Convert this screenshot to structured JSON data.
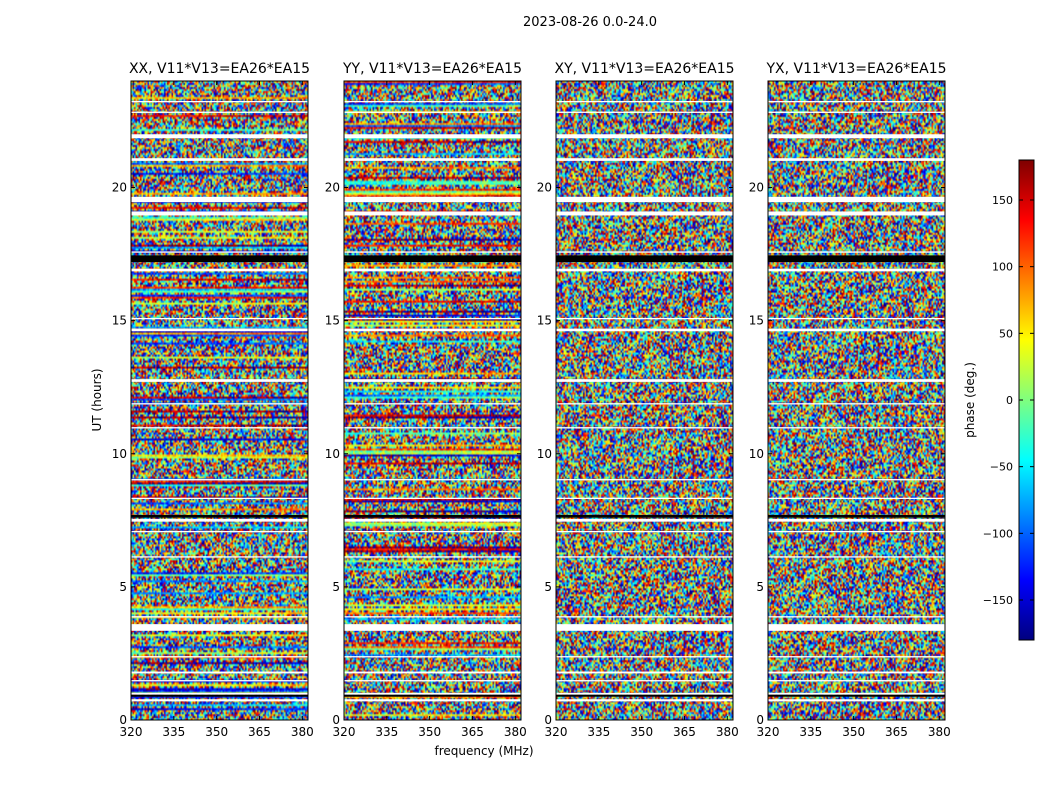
{
  "figure": {
    "title": "2023-08-26 0.0-24.0",
    "xlabel": "frequency (MHz)",
    "ylabel": "UT (hours)",
    "colorbar_label": "phase (deg.)"
  },
  "colormap": {
    "name": "jet",
    "stops": [
      "#00007f",
      "#0000ff",
      "#007fff",
      "#00ffff",
      "#7fff7f",
      "#ffff00",
      "#ff7f00",
      "#ff0000",
      "#7f0000"
    ]
  },
  "chart_data": [
    {
      "type": "heatmap",
      "title": "XX, V11*V13=EA26*EA15",
      "x": {
        "label": "frequency (MHz)",
        "range": [
          320,
          382
        ],
        "ticks": [
          320,
          335,
          350,
          365,
          380
        ]
      },
      "y": {
        "label": "UT (hours)",
        "range": [
          0,
          24
        ],
        "ticks": [
          0,
          5,
          10,
          15,
          20
        ]
      },
      "value": {
        "label": "phase (deg.)",
        "range": [
          -180,
          180
        ]
      }
    },
    {
      "type": "heatmap",
      "title": "YY, V11*V13=EA26*EA15",
      "x": {
        "label": "frequency (MHz)",
        "range": [
          320,
          382
        ],
        "ticks": [
          320,
          335,
          350,
          365,
          380
        ]
      },
      "y": {
        "label": "",
        "range": [
          0,
          24
        ],
        "ticks": [
          0,
          5,
          10,
          15,
          20
        ]
      },
      "value": {
        "label": "phase (deg.)",
        "range": [
          -180,
          180
        ]
      }
    },
    {
      "type": "heatmap",
      "title": "XY, V11*V13=EA26*EA15",
      "x": {
        "label": "frequency (MHz)",
        "range": [
          320,
          382
        ],
        "ticks": [
          320,
          335,
          350,
          365,
          380
        ]
      },
      "y": {
        "label": "",
        "range": [
          0,
          24
        ],
        "ticks": [
          0,
          5,
          10,
          15,
          20
        ]
      },
      "value": {
        "label": "phase (deg.)",
        "range": [
          -180,
          180
        ]
      }
    },
    {
      "type": "heatmap",
      "title": "YX, V11*V13=EA26*EA15",
      "x": {
        "label": "frequency (MHz)",
        "range": [
          320,
          382
        ],
        "ticks": [
          320,
          335,
          350,
          365,
          380
        ]
      },
      "y": {
        "label": "",
        "range": [
          0,
          24
        ],
        "ticks": [
          0,
          5,
          10,
          15,
          20
        ]
      },
      "value": {
        "label": "phase (deg.)",
        "range": [
          -180,
          180
        ]
      }
    }
  ],
  "colorbar": {
    "range": [
      -180,
      180
    ],
    "ticks": [
      -150,
      -100,
      -50,
      0,
      50,
      100,
      150
    ],
    "tick_labels": [
      "−150",
      "−100",
      "−50",
      "0",
      "50",
      "100",
      "150"
    ]
  },
  "blank_bands_ut": [
    [
      0.7,
      0.78
    ],
    [
      0.95,
      1.02
    ],
    [
      1.45,
      1.5
    ],
    [
      1.75,
      1.82
    ],
    [
      2.35,
      2.4
    ],
    [
      3.35,
      3.6
    ],
    [
      3.85,
      3.9
    ],
    [
      6.1,
      6.15
    ],
    [
      7.05,
      7.1
    ],
    [
      7.45,
      7.55
    ],
    [
      8.3,
      8.35
    ],
    [
      9.0,
      9.05
    ],
    [
      10.95,
      11.0
    ],
    [
      11.85,
      11.9
    ],
    [
      12.7,
      12.8
    ],
    [
      14.6,
      14.7
    ],
    [
      15.05,
      15.1
    ],
    [
      16.85,
      16.95
    ],
    [
      17.55,
      17.6
    ],
    [
      18.95,
      19.1
    ],
    [
      19.45,
      19.65
    ],
    [
      21.0,
      21.1
    ],
    [
      21.85,
      22.0
    ],
    [
      22.8,
      22.85
    ],
    [
      23.2,
      23.25
    ]
  ],
  "flagged_bands_ut": [
    [
      0.9,
      0.95
    ],
    [
      7.6,
      7.7
    ],
    [
      17.2,
      17.45
    ]
  ]
}
